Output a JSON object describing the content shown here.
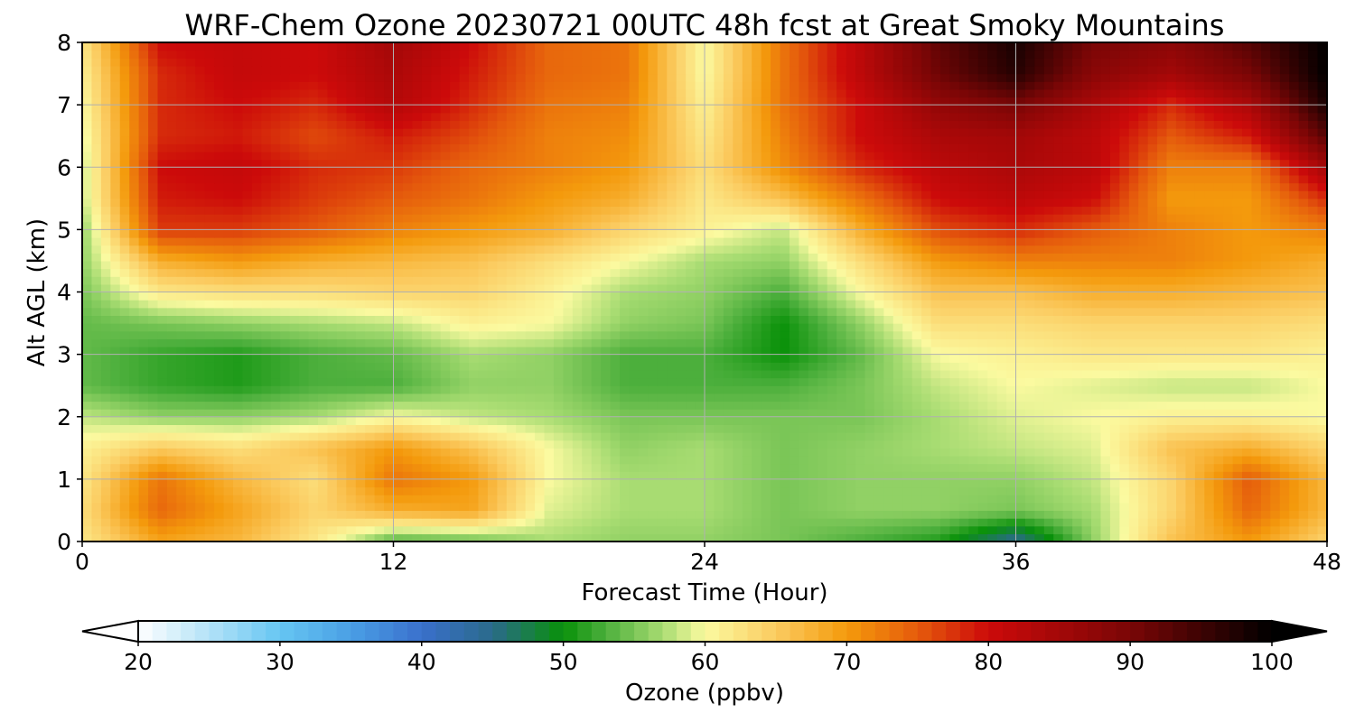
{
  "chart_data": {
    "type": "heatmap",
    "title": "WRF-Chem Ozone  20230721 00UTC 48h fcst at Great Smoky Mountains",
    "xlabel": "Forecast Time (Hour)",
    "ylabel": "Alt AGL (km)",
    "xlim": [
      0,
      48
    ],
    "ylim": [
      0,
      8
    ],
    "x_ticks": [
      0,
      12,
      24,
      36,
      48
    ],
    "y_ticks": [
      0,
      1,
      2,
      3,
      4,
      5,
      6,
      7,
      8
    ],
    "grid": true,
    "grid_x": [
      0,
      3,
      6,
      9,
      12,
      15,
      18,
      21,
      24,
      27,
      30,
      33,
      36,
      39,
      42,
      45,
      48
    ],
    "grid_y": [
      0,
      0.5,
      1,
      1.5,
      2,
      2.5,
      3,
      3.5,
      4,
      4.5,
      5,
      5.5,
      6,
      6.5,
      7,
      7.5,
      8
    ],
    "z": [
      [
        62,
        69,
        67,
        62,
        53,
        54,
        57,
        56,
        56,
        55,
        53,
        51,
        44,
        56,
        66,
        70,
        64
      ],
      [
        63,
        74,
        69,
        64,
        68,
        69,
        59,
        57,
        57,
        55,
        56,
        56,
        55,
        57,
        64,
        74,
        67
      ],
      [
        62,
        73,
        67,
        63,
        73,
        70,
        60,
        57,
        57,
        55,
        56,
        56,
        56,
        58,
        64,
        75,
        67
      ],
      [
        61,
        65,
        63,
        66,
        70,
        66,
        60,
        56,
        57,
        55,
        56,
        57,
        58,
        59,
        66,
        68,
        64
      ],
      [
        58,
        56,
        56,
        57,
        60,
        58,
        57,
        55,
        55,
        55,
        55,
        57,
        59,
        60,
        61,
        61,
        60
      ],
      [
        54,
        52,
        51,
        53,
        53,
        56,
        56,
        53,
        53,
        53,
        55,
        58,
        60,
        59,
        58,
        58,
        60
      ],
      [
        54,
        52,
        51,
        53,
        54,
        57,
        56,
        53,
        53,
        50,
        54,
        60,
        61,
        62,
        62,
        62,
        61
      ],
      [
        54,
        55,
        56,
        57,
        58,
        61,
        60,
        56,
        55,
        50,
        56,
        63,
        63,
        64,
        64,
        64,
        63
      ],
      [
        55,
        62,
        63,
        63,
        64,
        64,
        61,
        57,
        56,
        53,
        60,
        66,
        66,
        68,
        68,
        67,
        66
      ],
      [
        56,
        68,
        70,
        68,
        67,
        66,
        63,
        60,
        57,
        56,
        63,
        70,
        72,
        72,
        72,
        70,
        68
      ],
      [
        56,
        77,
        77,
        75,
        72,
        70,
        68,
        64,
        61,
        58,
        68,
        76,
        78,
        75,
        72,
        70,
        72
      ],
      [
        58,
        79,
        80,
        77,
        75,
        73,
        70,
        68,
        62,
        66,
        73,
        80,
        82,
        80,
        70,
        70,
        78
      ],
      [
        58,
        80,
        81,
        78,
        77,
        74,
        72,
        70,
        63,
        71,
        78,
        82,
        84,
        82,
        72,
        72,
        85
      ],
      [
        59,
        78,
        79,
        76,
        79,
        76,
        72,
        71,
        62,
        72,
        80,
        84,
        85,
        82,
        75,
        79,
        93
      ],
      [
        60,
        78,
        80,
        78,
        83,
        78,
        73,
        72,
        61,
        73,
        80,
        87,
        90,
        84,
        78,
        84,
        98
      ],
      [
        61,
        78,
        81,
        80,
        84,
        79,
        74,
        73,
        60,
        73,
        82,
        91,
        97,
        88,
        85,
        90,
        100
      ],
      [
        62,
        80,
        81,
        80,
        85,
        80,
        74,
        73,
        60,
        73,
        82,
        92,
        98,
        90,
        88,
        93,
        100
      ]
    ],
    "colorbar": {
      "label": "Ozone  (ppbv)",
      "min": 20,
      "max": 100,
      "ticks": [
        20,
        30,
        40,
        50,
        60,
        70,
        80,
        90,
        100
      ],
      "extend": "both",
      "stops": [
        {
          "value": 20,
          "color": "#ffffff"
        },
        {
          "value": 25,
          "color": "#b3e2f7"
        },
        {
          "value": 30,
          "color": "#66c6f2"
        },
        {
          "value": 35,
          "color": "#4a9fe5"
        },
        {
          "value": 40,
          "color": "#3a70cc"
        },
        {
          "value": 45,
          "color": "#2a6a8a"
        },
        {
          "value": 50,
          "color": "#099109"
        },
        {
          "value": 53,
          "color": "#4caf3c"
        },
        {
          "value": 57,
          "color": "#a8dc72"
        },
        {
          "value": 60,
          "color": "#fbfaa0"
        },
        {
          "value": 65,
          "color": "#fbcb60"
        },
        {
          "value": 70,
          "color": "#f49a0c"
        },
        {
          "value": 75,
          "color": "#e55b0c"
        },
        {
          "value": 80,
          "color": "#cc0a0a"
        },
        {
          "value": 90,
          "color": "#7a0606"
        },
        {
          "value": 100,
          "color": "#000000"
        }
      ]
    }
  }
}
